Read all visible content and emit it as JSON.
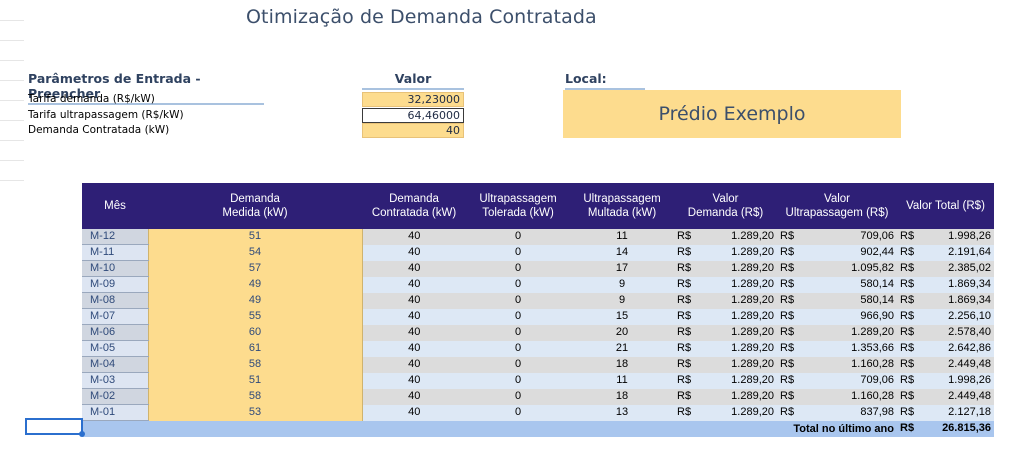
{
  "title": "Otimização de Demanda Contratada",
  "params": {
    "header": "Parâmetros de Entrada - Preencher",
    "value_header": "Valor",
    "rows": [
      {
        "label": "Tarifa demanda (R$/kW)",
        "value": "32,23000"
      },
      {
        "label": "Tarifa ultrapassagem (R$/kW)",
        "value": "64,46000"
      },
      {
        "label": "Demanda Contratada (kW)",
        "value": "40"
      }
    ]
  },
  "local": {
    "header": "Local:",
    "value": "Prédio Exemplo"
  },
  "table": {
    "headers": {
      "mes": "Mês",
      "medida": "Demanda\nMedida (kW)",
      "contratada": "Demanda\nContratada (kW)",
      "tolerada": "Ultrapassagem\nTolerada (kW)",
      "multada": "Ultrapassagem\nMultada (kW)",
      "valor_demanda": "Valor\nDemanda (R$)",
      "valor_ultra": "Valor\nUltrapassagem (R$)",
      "valor_total": "Valor Total (R$)"
    },
    "currency": "R$",
    "rows": [
      {
        "mes": "M-12",
        "medida": "51",
        "contratada": "40",
        "tolerada": "0",
        "multada": "11",
        "valor_demanda": "1.289,20",
        "valor_ultra": "709,06",
        "valor_total": "1.998,26"
      },
      {
        "mes": "M-11",
        "medida": "54",
        "contratada": "40",
        "tolerada": "0",
        "multada": "14",
        "valor_demanda": "1.289,20",
        "valor_ultra": "902,44",
        "valor_total": "2.191,64"
      },
      {
        "mes": "M-10",
        "medida": "57",
        "contratada": "40",
        "tolerada": "0",
        "multada": "17",
        "valor_demanda": "1.289,20",
        "valor_ultra": "1.095,82",
        "valor_total": "2.385,02"
      },
      {
        "mes": "M-09",
        "medida": "49",
        "contratada": "40",
        "tolerada": "0",
        "multada": "9",
        "valor_demanda": "1.289,20",
        "valor_ultra": "580,14",
        "valor_total": "1.869,34"
      },
      {
        "mes": "M-08",
        "medida": "49",
        "contratada": "40",
        "tolerada": "0",
        "multada": "9",
        "valor_demanda": "1.289,20",
        "valor_ultra": "580,14",
        "valor_total": "1.869,34"
      },
      {
        "mes": "M-07",
        "medida": "55",
        "contratada": "40",
        "tolerada": "0",
        "multada": "15",
        "valor_demanda": "1.289,20",
        "valor_ultra": "966,90",
        "valor_total": "2.256,10"
      },
      {
        "mes": "M-06",
        "medida": "60",
        "contratada": "40",
        "tolerada": "0",
        "multada": "20",
        "valor_demanda": "1.289,20",
        "valor_ultra": "1.289,20",
        "valor_total": "2.578,40"
      },
      {
        "mes": "M-05",
        "medida": "61",
        "contratada": "40",
        "tolerada": "0",
        "multada": "21",
        "valor_demanda": "1.289,20",
        "valor_ultra": "1.353,66",
        "valor_total": "2.642,86"
      },
      {
        "mes": "M-04",
        "medida": "58",
        "contratada": "40",
        "tolerada": "0",
        "multada": "18",
        "valor_demanda": "1.289,20",
        "valor_ultra": "1.160,28",
        "valor_total": "2.449,48"
      },
      {
        "mes": "M-03",
        "medida": "51",
        "contratada": "40",
        "tolerada": "0",
        "multada": "11",
        "valor_demanda": "1.289,20",
        "valor_ultra": "709,06",
        "valor_total": "1.998,26"
      },
      {
        "mes": "M-02",
        "medida": "58",
        "contratada": "40",
        "tolerada": "0",
        "multada": "18",
        "valor_demanda": "1.289,20",
        "valor_ultra": "1.160,28",
        "valor_total": "2.449,48"
      },
      {
        "mes": "M-01",
        "medida": "53",
        "contratada": "40",
        "tolerada": "0",
        "multada": "13",
        "valor_demanda": "1.289,20",
        "valor_ultra": "837,98",
        "valor_total": "2.127,18"
      }
    ],
    "total": {
      "label": "Total no último ano",
      "currency": "R$",
      "value": "26.815,36"
    }
  },
  "colors": {
    "header_bg": "#2e1f76",
    "input_yellow": "#fddc8e",
    "total_blue": "#a9c6ee",
    "selection_blue": "#2b6fce"
  }
}
